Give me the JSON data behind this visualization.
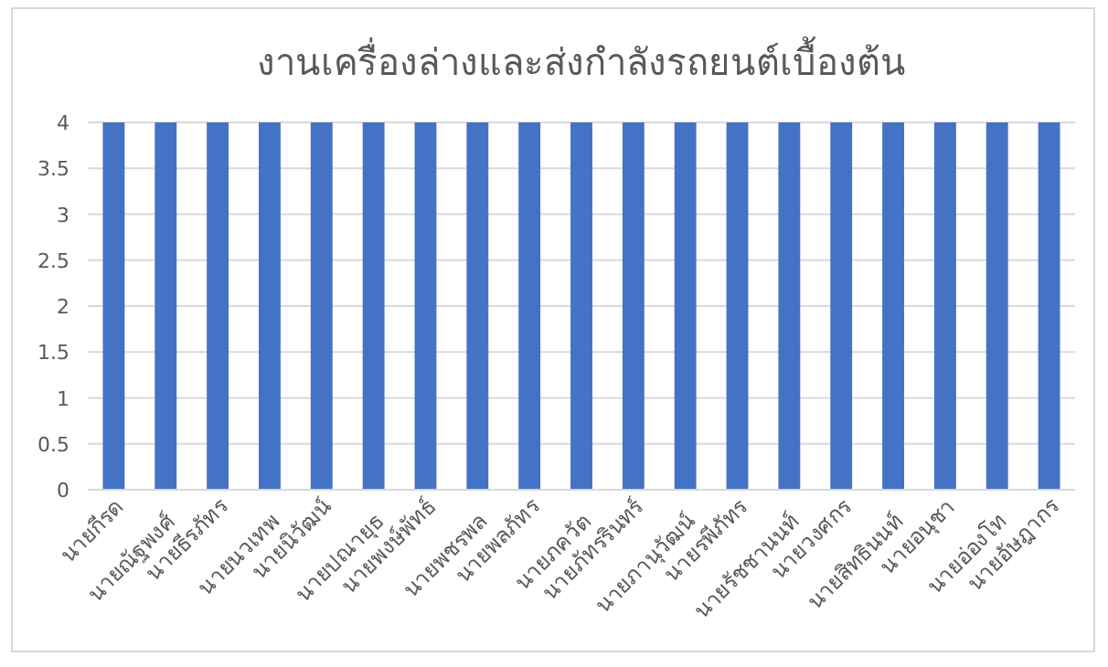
{
  "chart_data": {
    "type": "bar",
    "title": "งานเครื่องล่างและส่งกำลังรถยนต์เบื้องต้น",
    "categories": [
      "นายกีรด",
      "นายณัฐพงศ์",
      "นายธีรภัทร",
      "นายนวเทพ",
      "นายนิวัฒน์",
      "นายปณายุธ",
      "นายพงษ์พัทธ์",
      "นายพชรพล",
      "นายพลภัทร",
      "นายภควัต",
      "นายภัทรรินทร์",
      "นายภานุวัฒน์",
      "นายรพีภัทร",
      "นายรัชชานนท์",
      "นายวงศกร",
      "นายสิทธินนท์",
      "นายอนุชา",
      "นายอ่องโท",
      "นายอัษฎากร"
    ],
    "values": [
      4,
      4,
      4,
      4,
      4,
      4,
      4,
      4,
      4,
      4,
      4,
      4,
      4,
      4,
      4,
      4,
      4,
      4,
      4
    ],
    "color": "#4472c4",
    "ylim": [
      0,
      4
    ],
    "yticks": [
      0,
      0.5,
      1,
      1.5,
      2,
      2.5,
      3,
      3.5,
      4
    ],
    "grid": "y"
  }
}
